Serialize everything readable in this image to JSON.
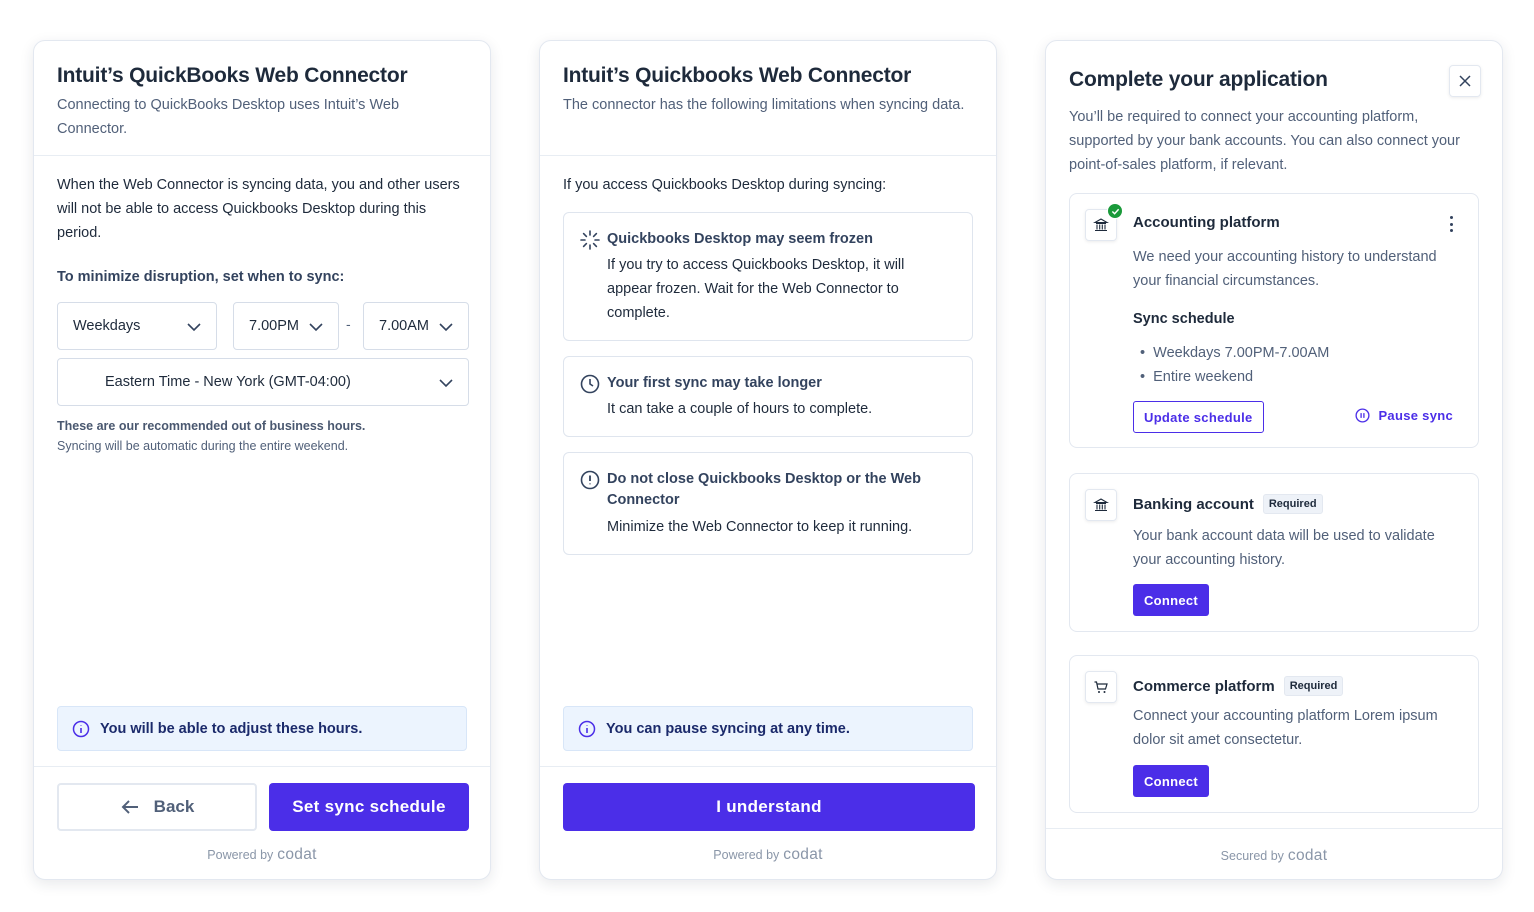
{
  "colors": {
    "primary": "#4b2ee8",
    "success": "#1a9a3a",
    "info_bg": "#ecf4fe"
  },
  "panel1": {
    "title": "Intuit’s QuickBooks Web Connector",
    "subtitle": "Connecting to QuickBooks Desktop uses Intuit’s Web Connector.",
    "body": "When the Web Connector is syncing data, you and other users will not be able to access Quickbooks Desktop during this period.",
    "prompt": "To minimize disruption, set when to sync:",
    "days": "Weekdays",
    "start_time": "7.00PM",
    "separator": "-",
    "end_time": "7.00AM",
    "timezone": "Eastern Time - New York (GMT-04:00)",
    "note_bold": "These are our recommended out of business hours.",
    "note": "Syncing will be automatic during the entire weekend.",
    "info": "You will be able to adjust these hours.",
    "back": "Back",
    "submit": "Set sync schedule",
    "powered": "Powered by",
    "brand": "codat"
  },
  "panel2": {
    "title": "Intuit’s Quickbooks Web Connector",
    "subtitle": "The connector has the following limitations when syncing data.",
    "intro": "If you access Quickbooks Desktop during syncing:",
    "cards": [
      {
        "icon": "loader-icon",
        "title": "Quickbooks Desktop may seem frozen",
        "body": "If you try to access Quickbooks Desktop, it will appear frozen. Wait for the Web Connector to complete."
      },
      {
        "icon": "clock-icon",
        "title": "Your first sync may take longer",
        "body": "It can take a couple of hours to complete."
      },
      {
        "icon": "alert-circle-icon",
        "title": "Do not close Quickbooks Desktop or the Web Connector",
        "body": "Minimize the Web Connector to keep it running."
      }
    ],
    "info": "You can pause syncing at any time.",
    "submit": "I understand",
    "powered": "Powered by",
    "brand": "codat"
  },
  "panel3": {
    "title": "Complete your application",
    "subtitle": "You’ll be required to connect your accounting platform, supported by your bank accounts. You can also connect your point-of-sales platform, if relevant.",
    "accounting": {
      "title": "Accounting platform",
      "body": "We need your accounting history to understand your financial circumstances.",
      "schedule_title": "Sync schedule",
      "schedule": [
        "Weekdays 7.00PM-7.00AM",
        "Entire weekend"
      ],
      "update": "Update schedule",
      "pause": "Pause sync",
      "status": "connected"
    },
    "banking": {
      "title": "Banking account",
      "badge": "Required",
      "body": "Your bank account data will be used to validate your accounting history.",
      "button": "Connect"
    },
    "commerce": {
      "title": "Commerce platform",
      "badge": "Required",
      "body": "Connect your accounting platform Lorem ipsum dolor sit amet consectetur.",
      "button": "Connect"
    },
    "secured": "Secured by",
    "brand": "codat"
  }
}
